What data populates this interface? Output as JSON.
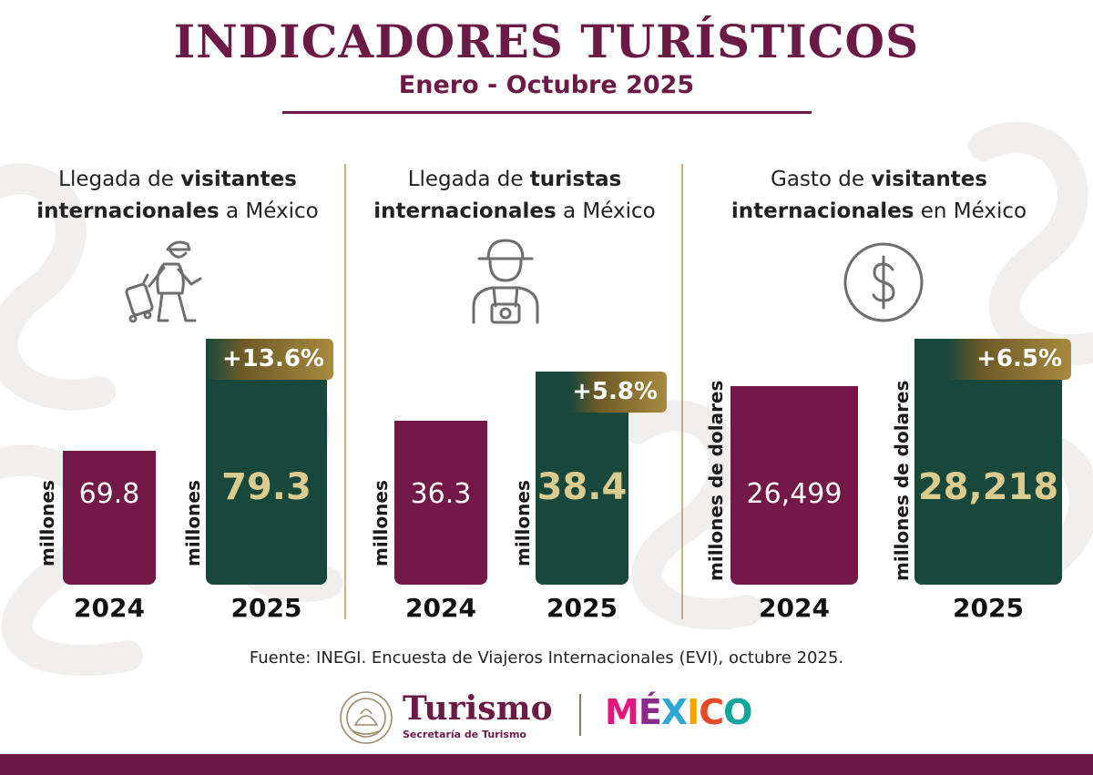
{
  "header": {
    "title": "INDICADORES TURÍSTICOS",
    "subtitle": "Enero - Octubre 2025"
  },
  "panels": [
    {
      "title_parts": [
        "Llegada de ",
        "visitantes",
        "internacionales",
        " a México"
      ],
      "icon": "traveler-with-suitcase-icon",
      "unit": "millones",
      "change": "+13.6%",
      "label_2024": "69.8",
      "label_2025": "79.3"
    },
    {
      "title_parts": [
        "Llegada de ",
        "turistas",
        "internacionales",
        " a México"
      ],
      "icon": "tourist-with-camera-icon",
      "unit": "millones",
      "change": "+5.8%",
      "label_2024": "36.3",
      "label_2025": "38.4"
    },
    {
      "title_parts": [
        "Gasto de ",
        "visitantes",
        "internacionales",
        " en México"
      ],
      "icon": "dollar-coin-icon",
      "unit": "millones de dolares",
      "change": "+6.5%",
      "label_2024": "26,499",
      "label_2025": "28,218"
    }
  ],
  "chart_data": [
    {
      "type": "bar",
      "categories": [
        "2024",
        "2025"
      ],
      "values": [
        69.8,
        79.3
      ],
      "unit": "millones",
      "change": "+13.6%",
      "colors": [
        "#731847",
        "#17483b"
      ]
    },
    {
      "type": "bar",
      "categories": [
        "2024",
        "2025"
      ],
      "values": [
        36.3,
        38.4
      ],
      "unit": "millones",
      "change": "+5.8%",
      "colors": [
        "#731847",
        "#17483b"
      ]
    },
    {
      "type": "bar",
      "categories": [
        "2024",
        "2025"
      ],
      "values": [
        26499,
        28218
      ],
      "unit": "millones de dolares",
      "change": "+6.5%",
      "colors": [
        "#731847",
        "#17483b"
      ]
    }
  ],
  "source": "Fuente:  INEGI. Encuesta de Viajeros Internacionales (EVI), octubre 2025.",
  "footer": {
    "logo_main": "Turismo",
    "logo_sub": "Secretaría de Turismo",
    "brand": "MÉXICO",
    "brand_letters": [
      "M",
      "É",
      "X",
      "I",
      "C",
      "O"
    ],
    "brand_colors": [
      "#e4167e",
      "#8c2a8c",
      "#2ea7d8",
      "#f5a400",
      "#e24a2a",
      "#11a59b"
    ],
    "accent": "#6b1a45"
  }
}
